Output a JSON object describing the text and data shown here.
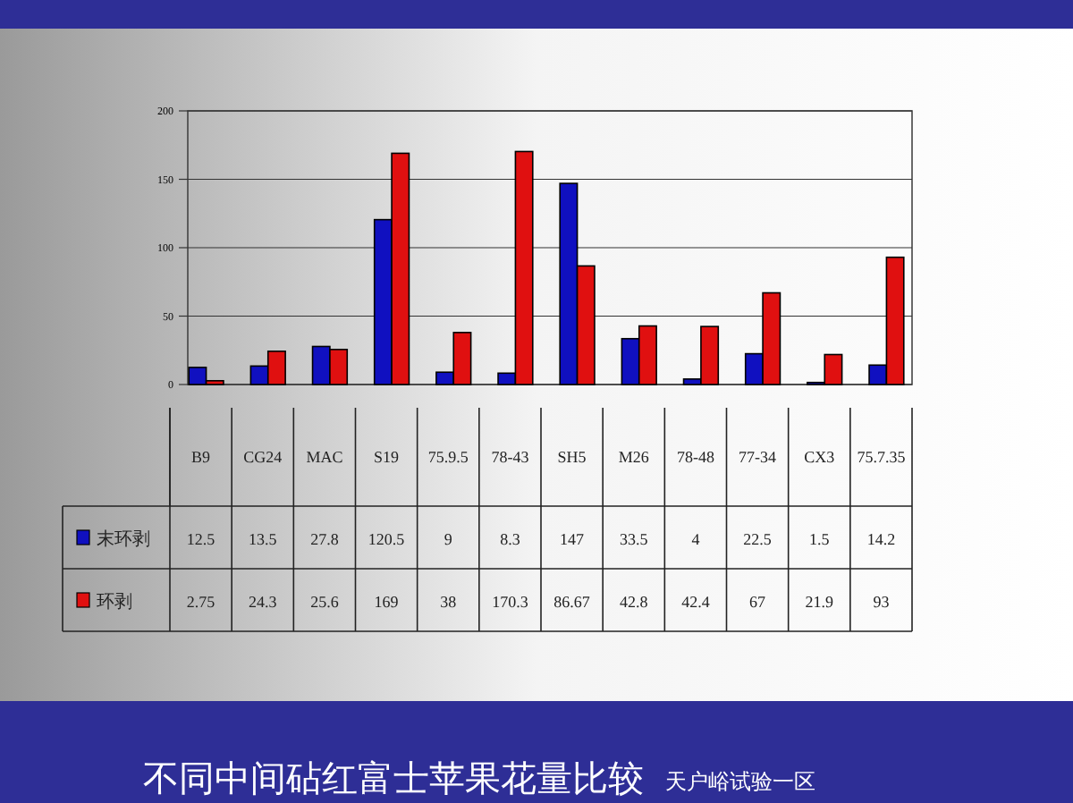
{
  "chart_data": {
    "type": "bar",
    "title": "不同中间砧红富士苹果花量比较",
    "subtitle": "天户峪试验一区",
    "categories": [
      "B9",
      "CG24",
      "MAC",
      "S19",
      "75.9.5",
      "78-43",
      "SH5",
      "M26",
      "78-48",
      "77-34",
      "CX3",
      "75.7.35"
    ],
    "series": [
      {
        "name": "末环剥",
        "color": "#1010c0",
        "values": [
          12.5,
          13.5,
          27.8,
          120.5,
          9,
          8.3,
          147,
          33.5,
          4,
          22.5,
          1.5,
          14.2
        ]
      },
      {
        "name": "环剥",
        "color": "#e01010",
        "values": [
          2.75,
          24.3,
          25.6,
          169,
          38,
          170.3,
          86.67,
          42.8,
          42.4,
          67,
          21.9,
          93
        ]
      }
    ],
    "ylim": [
      0,
      200
    ],
    "yticks": [
      0,
      50,
      100,
      150,
      200
    ],
    "grid": "y",
    "legend": "bottom",
    "data_labels": true
  }
}
